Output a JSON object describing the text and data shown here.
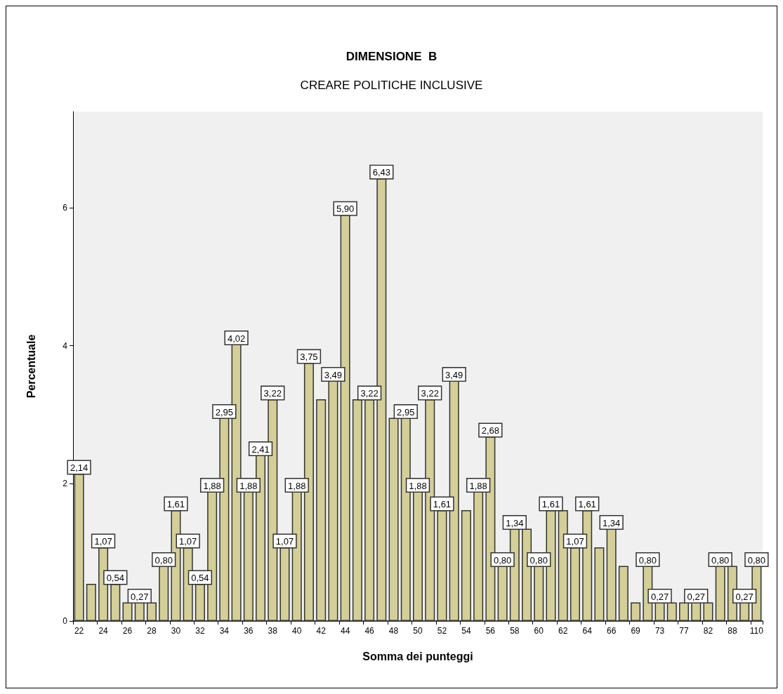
{
  "chart_data": {
    "type": "bar",
    "title": "DIMENSIONE  B",
    "subtitle": "CREARE POLITICHE INCLUSIVE",
    "xlabel": "Somma dei punteggi",
    "ylabel": "Percentuale",
    "categories": [
      "22",
      null,
      "24",
      null,
      "26",
      null,
      "28",
      null,
      "30",
      null,
      "32",
      null,
      "34",
      null,
      "36",
      null,
      "38",
      null,
      "40",
      null,
      "42",
      null,
      "44",
      null,
      "46",
      null,
      "48",
      null,
      "50",
      null,
      "52",
      null,
      "54",
      null,
      "56",
      null,
      "58",
      null,
      "60",
      null,
      "62",
      null,
      "64",
      null,
      "66",
      null,
      "69",
      null,
      "73",
      null,
      "77",
      null,
      "82",
      null,
      "88",
      null,
      "110"
    ],
    "values": [
      2.14,
      0.54,
      1.07,
      0.54,
      0.27,
      0.27,
      0.27,
      0.8,
      1.61,
      1.07,
      0.54,
      1.88,
      2.95,
      4.02,
      1.88,
      2.41,
      3.22,
      1.07,
      1.88,
      3.75,
      3.22,
      3.49,
      5.9,
      3.22,
      3.22,
      6.43,
      2.95,
      2.95,
      1.88,
      3.22,
      1.61,
      3.49,
      1.61,
      1.88,
      2.68,
      0.8,
      1.34,
      1.34,
      0.8,
      1.61,
      1.61,
      1.07,
      1.61,
      1.07,
      1.34,
      0.8,
      0.27,
      0.8,
      0.27,
      0.27,
      0.27,
      0.27,
      0.27,
      0.8,
      0.8,
      0.27,
      0.8
    ],
    "value_labels": [
      "2,14",
      null,
      "1,07",
      "0,54",
      null,
      "0,27",
      null,
      "0,80",
      "1,61",
      "1,07",
      "0,54",
      "1,88",
      "2,95",
      "4,02",
      "1,88",
      "2,41",
      "3,22",
      "1,07",
      "1,88",
      "3,75",
      null,
      "3,49",
      "5,90",
      null,
      "3,22",
      "6,43",
      null,
      "2,95",
      "1,88",
      "3,22",
      "1,61",
      "3,49",
      null,
      "1,88",
      "2,68",
      "0,80",
      "1,34",
      null,
      "0,80",
      "1,61",
      null,
      "1,07",
      "1,61",
      null,
      "1,34",
      null,
      null,
      "0,80",
      "0,27",
      null,
      null,
      "0,27",
      null,
      "0,80",
      null,
      "0,27",
      "0,80"
    ],
    "color": "#d4cf98",
    "ylim": [
      0,
      7.4
    ],
    "yticks": [
      0,
      2,
      4,
      6
    ],
    "grid": false
  }
}
